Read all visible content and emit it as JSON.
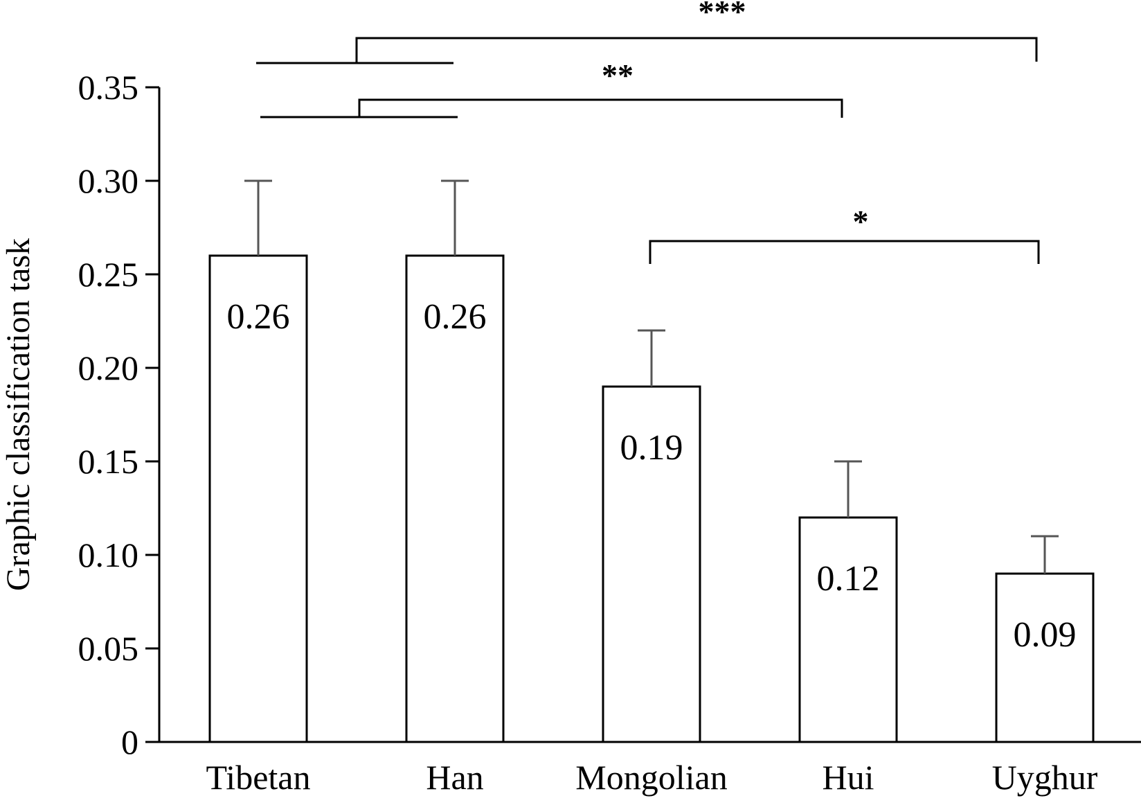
{
  "chart_data": {
    "type": "bar",
    "title": "",
    "xlabel": "",
    "ylabel": "Graphic classification task",
    "ylim": [
      0,
      0.35
    ],
    "yticks": [
      "0",
      "0.05",
      "0.10",
      "0.15",
      "0.20",
      "0.25",
      "0.30",
      "0.35"
    ],
    "categories": [
      "Tibetan",
      "Han",
      "Mongolian",
      "Hui",
      "Uyghur"
    ],
    "values": [
      0.26,
      0.26,
      0.19,
      0.12,
      0.09
    ],
    "value_labels": [
      "0.26",
      "0.26",
      "0.19",
      "0.12",
      "0.09"
    ],
    "error_upper": [
      0.3,
      0.3,
      0.22,
      0.15,
      0.11
    ],
    "grid": false,
    "significance": [
      {
        "label": "***",
        "from_group": [
          "Tibetan",
          "Han"
        ],
        "to": "Uyghur"
      },
      {
        "label": "**",
        "from_group": [
          "Tibetan",
          "Han"
        ],
        "to": "Hui"
      },
      {
        "label": "*",
        "from": "Mongolian",
        "to": "Uyghur"
      }
    ]
  }
}
